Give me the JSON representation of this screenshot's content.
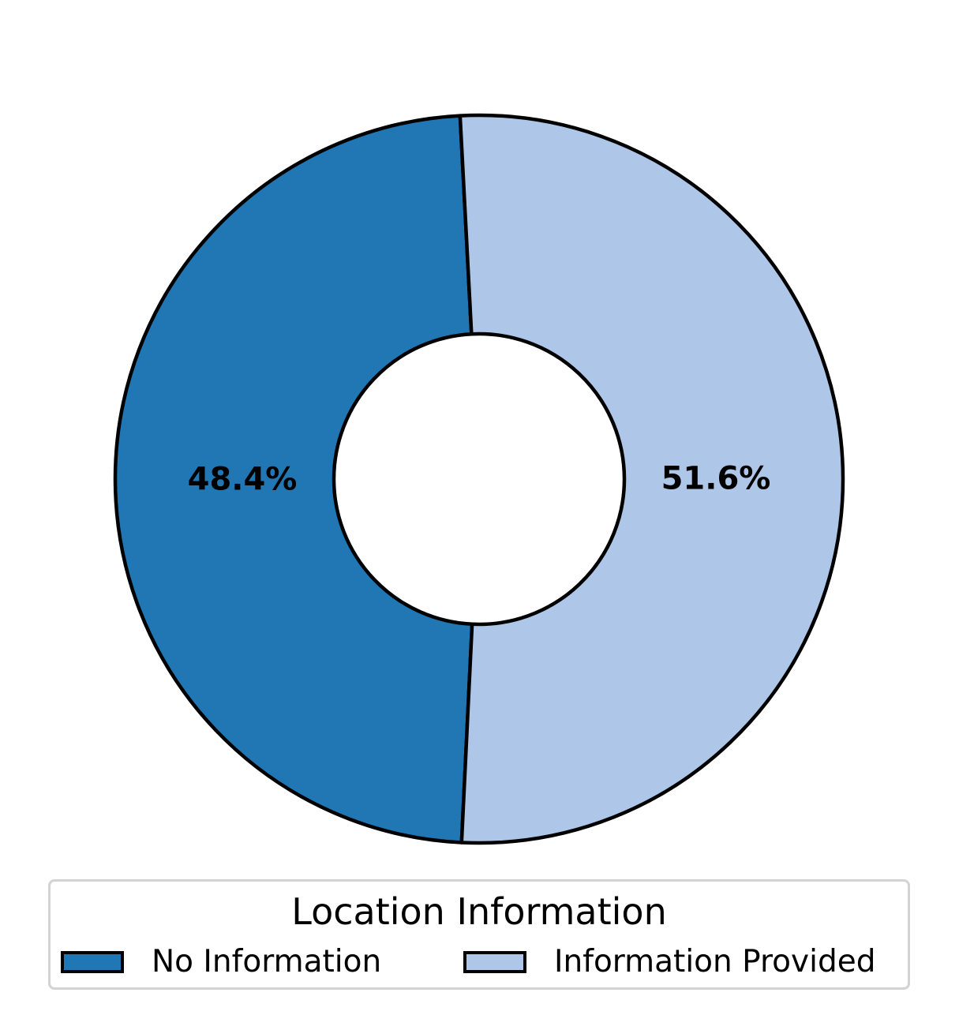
{
  "chart_data": {
    "type": "pie",
    "donut": true,
    "categories": [
      "No Information",
      "Information Provided"
    ],
    "values": [
      48.4,
      51.6
    ],
    "value_labels": [
      "48.4%",
      "51.6%"
    ],
    "colors": [
      "#2077b4",
      "#aec6e8"
    ],
    "edge_color": "#000000",
    "start_angle_deg": 93,
    "legend": {
      "title": "Location Information",
      "placement": "bottom-center",
      "entries": [
        "No Information",
        "Information Provided"
      ]
    }
  }
}
